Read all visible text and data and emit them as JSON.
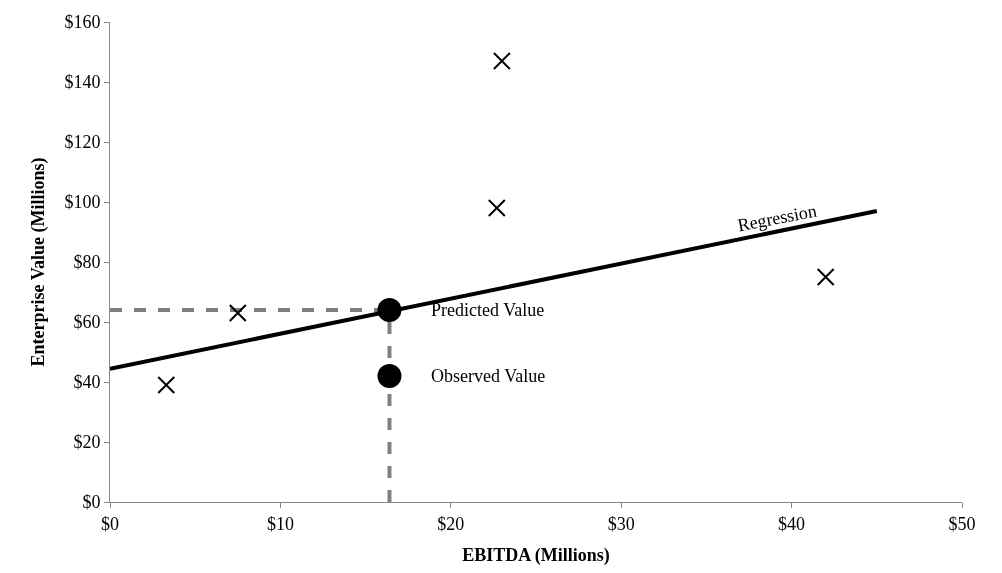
{
  "chart_data": {
    "type": "scatter",
    "xlabel": "EBITDA (Millions)",
    "ylabel": "Enterprise Value (Millions)",
    "xlim": [
      0,
      50
    ],
    "ylim": [
      0,
      160
    ],
    "xticks": [
      {
        "value": 0,
        "label": "$0"
      },
      {
        "value": 10,
        "label": "$10"
      },
      {
        "value": 20,
        "label": "$20"
      },
      {
        "value": 30,
        "label": "$30"
      },
      {
        "value": 40,
        "label": "$40"
      },
      {
        "value": 50,
        "label": "$50"
      }
    ],
    "yticks": [
      {
        "value": 0,
        "label": "$0"
      },
      {
        "value": 20,
        "label": "$20"
      },
      {
        "value": 40,
        "label": "$40"
      },
      {
        "value": 60,
        "label": "$60"
      },
      {
        "value": 80,
        "label": "$80"
      },
      {
        "value": 100,
        "label": "$100"
      },
      {
        "value": 120,
        "label": "$120"
      },
      {
        "value": 140,
        "label": "$140"
      },
      {
        "value": 160,
        "label": "$160"
      }
    ],
    "grid": false,
    "series": [
      {
        "type": "line",
        "color": "#808080",
        "line_style": "dashed",
        "marker": "none",
        "x": [
          0,
          16.4
        ],
        "values": [
          64,
          64
        ]
      },
      {
        "type": "line",
        "color": "#808080",
        "line_style": "dashed",
        "marker": "none",
        "x": [
          16.4,
          16.4
        ],
        "values": [
          0,
          64
        ]
      },
      {
        "color": "#000000",
        "line_style": "solid",
        "type": "line",
        "marker": "none",
        "x": [
          0,
          45
        ],
        "values": [
          44.4,
          97
        ]
      },
      {
        "color": "#000000",
        "marker": "cross",
        "x": [
          3.3,
          7.5,
          22.7,
          23,
          42
        ],
        "values": [
          39,
          63,
          98,
          147,
          75
        ]
      },
      {
        "color": "#000000",
        "marker": "circle",
        "x": [
          16.4,
          16.4
        ],
        "values": [
          64,
          42
        ]
      }
    ],
    "annotations": [
      "Predicted Value",
      "Observed Value",
      "Regression"
    ]
  }
}
